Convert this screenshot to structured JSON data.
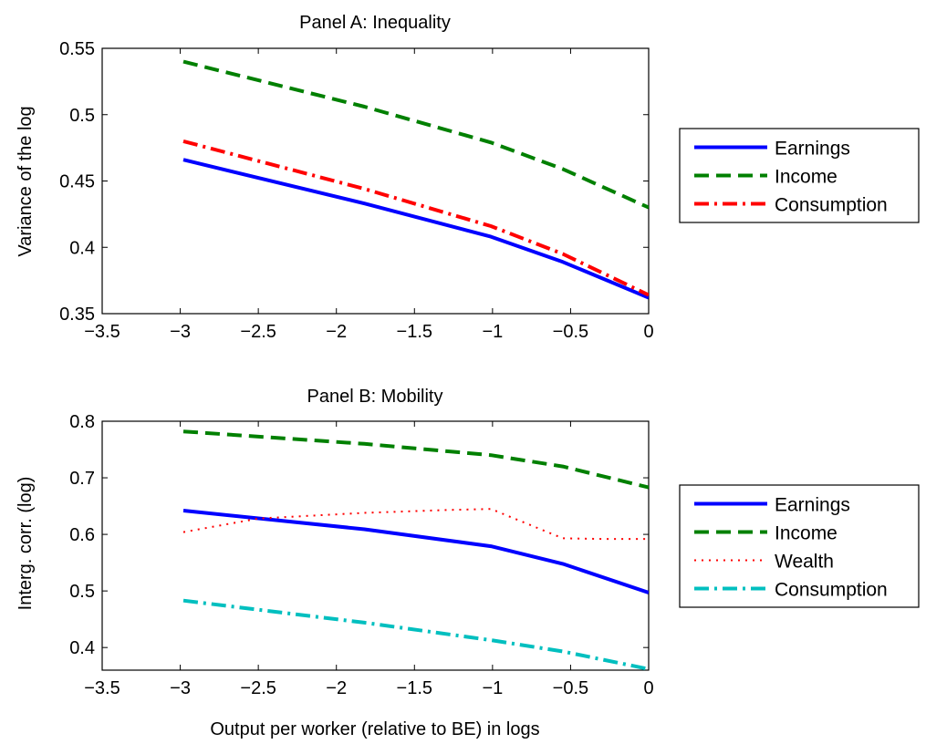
{
  "chart_data": [
    {
      "type": "line",
      "title": "Panel A: Inequality",
      "xlabel": "",
      "ylabel": "Variance of the log",
      "xlim": [
        -3.5,
        0
      ],
      "ylim": [
        0.35,
        0.55
      ],
      "xticks": [
        -3.5,
        -3,
        -2.5,
        -2,
        -1.5,
        -1,
        -0.5,
        0
      ],
      "xtick_labels": [
        "−3.5",
        "−3",
        "−2.5",
        "−2",
        "−1.5",
        "−1",
        "−0.5",
        "0"
      ],
      "yticks": [
        0.35,
        0.4,
        0.45,
        0.5,
        0.55
      ],
      "ytick_labels": [
        "0.35",
        "0.4",
        "0.45",
        "0.5",
        "0.55"
      ],
      "grid": false,
      "legend_position": "outside-right",
      "series": [
        {
          "name": "Earnings",
          "color": "#0000ff",
          "style": "solid",
          "x": [
            -2.98,
            -1.82,
            -1.01,
            -0.55,
            0
          ],
          "y": [
            0.466,
            0.433,
            0.408,
            0.389,
            0.362
          ]
        },
        {
          "name": "Income",
          "color": "#008000",
          "style": "dashed",
          "x": [
            -2.98,
            -1.82,
            -1.01,
            -0.55,
            0
          ],
          "y": [
            0.54,
            0.506,
            0.479,
            0.459,
            0.43
          ]
        },
        {
          "name": "Consumption",
          "color": "#ff0000",
          "style": "dashdot",
          "x": [
            -2.98,
            -1.82,
            -1.01,
            -0.55,
            0
          ],
          "y": [
            0.48,
            0.444,
            0.416,
            0.395,
            0.364
          ]
        }
      ]
    },
    {
      "type": "line",
      "title": "Panel B: Mobility",
      "xlabel": "Output per worker (relative to BE) in logs",
      "ylabel": "Interg. corr. (log)",
      "xlim": [
        -3.5,
        0
      ],
      "ylim": [
        0.36,
        0.8
      ],
      "xticks": [
        -3.5,
        -3,
        -2.5,
        -2,
        -1.5,
        -1,
        -0.5,
        0
      ],
      "xtick_labels": [
        "−3.5",
        "−3",
        "−2.5",
        "−2",
        "−1.5",
        "−1",
        "−0.5",
        "0"
      ],
      "yticks": [
        0.4,
        0.5,
        0.6,
        0.7,
        0.8
      ],
      "ytick_labels": [
        "0.4",
        "0.5",
        "0.6",
        "0.7",
        "0.8"
      ],
      "grid": false,
      "legend_position": "outside-right",
      "series": [
        {
          "name": "Earnings",
          "color": "#0000ff",
          "style": "solid",
          "x": [
            -2.98,
            -1.82,
            -1.01,
            -0.55,
            0
          ],
          "y": [
            0.642,
            0.609,
            0.579,
            0.548,
            0.497
          ]
        },
        {
          "name": "Income",
          "color": "#008000",
          "style": "dashed",
          "x": [
            -2.98,
            -1.82,
            -1.01,
            -0.55,
            0
          ],
          "y": [
            0.782,
            0.76,
            0.74,
            0.72,
            0.683
          ]
        },
        {
          "name": "Wealth",
          "color": "#ff0000",
          "style": "dotted",
          "x": [
            -2.98,
            -2.5,
            -1.82,
            -1.3,
            -1.01,
            -0.55,
            -0.3,
            0
          ],
          "y": [
            0.604,
            0.628,
            0.638,
            0.643,
            0.645,
            0.593,
            0.592,
            0.592
          ]
        },
        {
          "name": "Consumption",
          "color": "#00bfbf",
          "style": "dashdot",
          "x": [
            -2.98,
            -1.82,
            -1.01,
            -0.55,
            0
          ],
          "y": [
            0.483,
            0.444,
            0.413,
            0.393,
            0.362
          ]
        }
      ]
    }
  ]
}
